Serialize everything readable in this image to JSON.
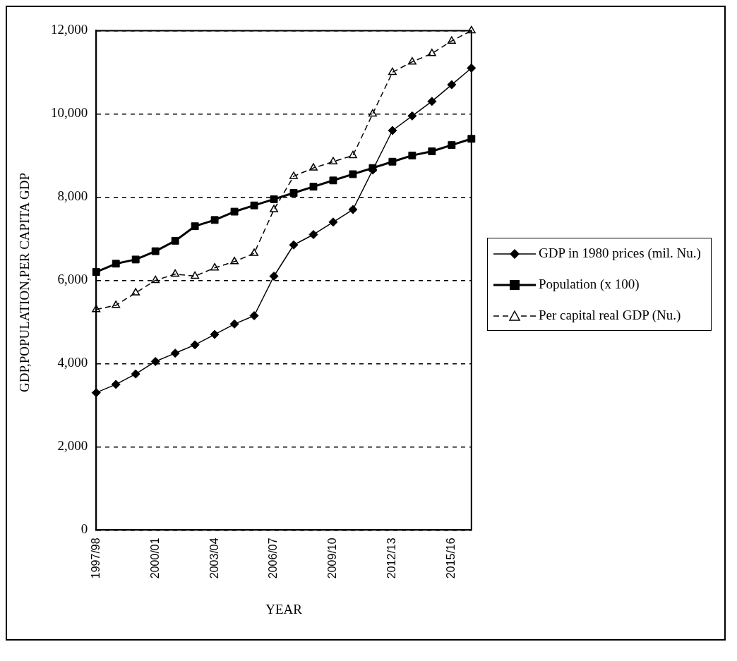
{
  "chart_data": {
    "type": "line",
    "xlabel": "YEAR",
    "ylabel": "GDP,POPULATION,PER CAPITA GDP",
    "categories": [
      "1997/98",
      null,
      null,
      "2000/01",
      null,
      null,
      "2003/04",
      null,
      null,
      "2006/07",
      null,
      null,
      "2009/10",
      null,
      null,
      "2012/13",
      null,
      null,
      "2015/16",
      null
    ],
    "series": [
      {
        "name": "GDP in 1980 prices (mil. Nu.)",
        "color": "#000000",
        "marker": "diamond",
        "line_style": "solid",
        "values": [
          3300,
          3500,
          3750,
          4050,
          4250,
          4450,
          4700,
          4950,
          5150,
          6100,
          6850,
          7100,
          7400,
          7700,
          8650,
          9600,
          9950,
          10300,
          10700,
          11100
        ]
      },
      {
        "name": "Population (x 100)",
        "color": "#000000",
        "marker": "square",
        "line_style": "solid",
        "values": [
          6200,
          6400,
          6500,
          6700,
          6950,
          7300,
          7450,
          7650,
          7800,
          7950,
          8100,
          8250,
          8400,
          8550,
          8700,
          8850,
          9000,
          9100,
          9250,
          9400
        ]
      },
      {
        "name": "Per capital real GDP (Nu.)",
        "color": "#000000",
        "marker": "triangle",
        "line_style": "dashed",
        "values": [
          5300,
          5400,
          5700,
          6000,
          6150,
          6100,
          6300,
          6450,
          6650,
          7700,
          8500,
          8700,
          8850,
          9000,
          10000,
          11000,
          11250,
          11450,
          11750,
          12000
        ]
      }
    ],
    "ylim": [
      0,
      12000
    ],
    "yticks": [
      0,
      {
        "value": 2000,
        "label": "2,000"
      },
      {
        "value": 4000,
        "label": "4,000"
      },
      {
        "value": 6000,
        "label": "6,000"
      },
      {
        "value": 8000,
        "label": "8,000"
      },
      {
        "value": 10000,
        "label": "10,000"
      },
      {
        "value": 12000,
        "label": "12,000"
      }
    ],
    "grid": "y",
    "legend": "right"
  }
}
